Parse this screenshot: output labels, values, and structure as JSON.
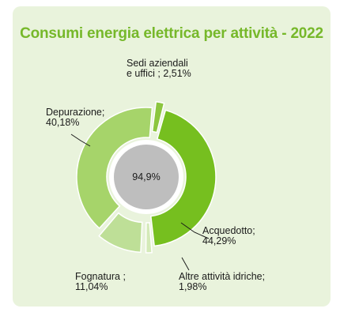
{
  "chart_data": {
    "type": "pie",
    "style": "donut",
    "title": "Consumi energia elettrica per attività - 2022",
    "center_label": "94,9%",
    "slices": [
      {
        "name": "Acquedotto",
        "label_lines": [
          "Acquedotto;",
          "44,29%"
        ],
        "value": 44.29,
        "color": "#76bf1f",
        "exploded": false
      },
      {
        "name": "Altre attività idriche",
        "label_lines": [
          "Altre attività idriche;",
          "1,98%"
        ],
        "value": 1.98,
        "color": "#d4eab8",
        "exploded": true
      },
      {
        "name": "Fognatura",
        "label_lines": [
          "Fognatura ;",
          "11,04%"
        ],
        "value": 11.04,
        "color": "#bedf97",
        "exploded": true
      },
      {
        "name": "Depurazione",
        "label_lines": [
          "Depurazione;",
          "40,18%"
        ],
        "value": 40.18,
        "color": "#a6d46a",
        "exploded": false
      },
      {
        "name": "Sedi aziendali e uffici",
        "label_lines": [
          "Sedi aziendali",
          "e uffici ; 2,51%"
        ],
        "value": 2.51,
        "color": "#8cc63f",
        "exploded": true
      }
    ],
    "colors": {
      "background": "#e9f3dc",
      "title": "#76b82a",
      "center_disc": "#bebebe",
      "gap_ring": "#ffffff"
    }
  }
}
